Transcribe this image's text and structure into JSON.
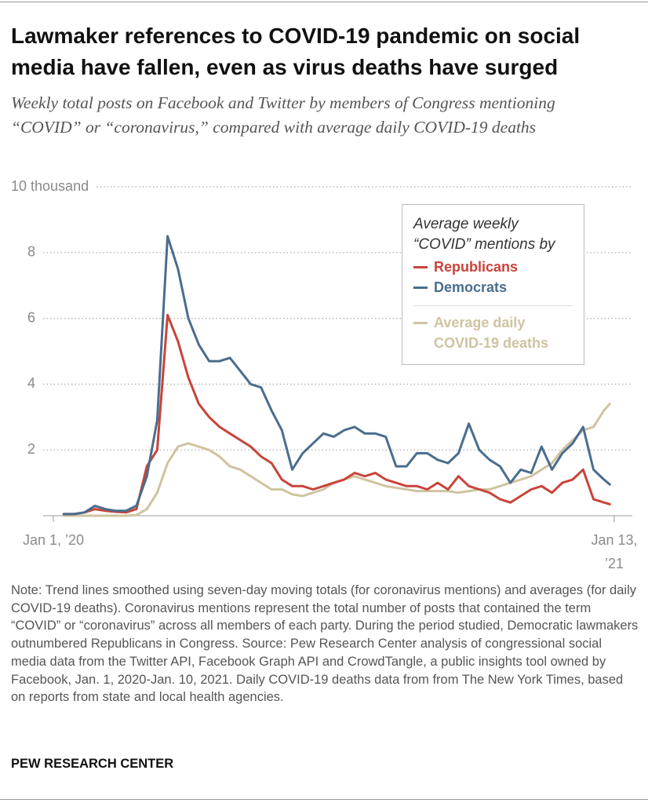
{
  "chart_data": {
    "type": "line",
    "title": "Lawmaker references to COVID-19 pandemic on social media have fallen, even as virus deaths have surged",
    "subtitle": "Weekly total posts on Facebook and Twitter by members of Congress mentioning “COVID” or “coronavirus,” compared with average daily COVID-19 deaths",
    "legend_title": "Average weekly “COVID” mentions by",
    "x": [
      7,
      14,
      21,
      28,
      35,
      42,
      49,
      56,
      63,
      70,
      77,
      84,
      91,
      98,
      105,
      112,
      119,
      126,
      133,
      140,
      147,
      154,
      161,
      168,
      175,
      182,
      189,
      196,
      203,
      210,
      217,
      224,
      231,
      238,
      245,
      252,
      259,
      266,
      273,
      280,
      287,
      294,
      301,
      308,
      315,
      322,
      329,
      336,
      343,
      350,
      357,
      364,
      371,
      375
    ],
    "xlim": [
      0,
      378
    ],
    "xticks": [
      {
        "value": 0,
        "label": "Jan 1, ’20"
      },
      {
        "value": 378,
        "label": "Jan 13, ’21"
      }
    ],
    "ylim": [
      0,
      10
    ],
    "yticks": [
      {
        "value": 10,
        "label": "10 thousand"
      },
      8,
      6,
      4,
      2
    ],
    "grid": true,
    "series": [
      {
        "name": "Republicans",
        "color": "#c9433a",
        "values": [
          0.05,
          0.05,
          0.1,
          0.2,
          0.15,
          0.12,
          0.1,
          0.2,
          1.5,
          2.0,
          6.1,
          5.3,
          4.2,
          3.4,
          3.0,
          2.7,
          2.5,
          2.3,
          2.1,
          1.8,
          1.6,
          1.1,
          0.9,
          0.9,
          0.8,
          0.9,
          1.0,
          1.1,
          1.3,
          1.2,
          1.3,
          1.1,
          1.0,
          0.9,
          0.9,
          0.8,
          1.0,
          0.8,
          1.2,
          0.9,
          0.8,
          0.7,
          0.5,
          0.4,
          0.6,
          0.8,
          0.9,
          0.7,
          1.0,
          1.1,
          1.4,
          0.5,
          0.4,
          0.35
        ]
      },
      {
        "name": "Democrats",
        "color": "#4a6d8e",
        "values": [
          0.05,
          0.05,
          0.1,
          0.3,
          0.2,
          0.15,
          0.15,
          0.3,
          1.2,
          2.9,
          8.5,
          7.5,
          6.0,
          5.2,
          4.7,
          4.7,
          4.8,
          4.4,
          4.0,
          3.9,
          3.2,
          2.6,
          1.4,
          1.9,
          2.2,
          2.5,
          2.4,
          2.6,
          2.7,
          2.5,
          2.5,
          2.4,
          1.5,
          1.5,
          1.9,
          1.9,
          1.7,
          1.6,
          1.9,
          2.8,
          2.0,
          1.7,
          1.5,
          1.0,
          1.4,
          1.3,
          2.1,
          1.4,
          1.9,
          2.2,
          2.7,
          1.4,
          1.1,
          0.95
        ]
      },
      {
        "name": "Average daily COVID-19 deaths",
        "color": "#cfc3a0",
        "values": [
          0,
          0,
          0,
          0,
          0,
          0,
          0,
          0.02,
          0.2,
          0.7,
          1.6,
          2.1,
          2.2,
          2.1,
          2.0,
          1.8,
          1.5,
          1.4,
          1.2,
          1.0,
          0.8,
          0.8,
          0.65,
          0.6,
          0.7,
          0.8,
          1.0,
          1.1,
          1.2,
          1.1,
          1.0,
          0.9,
          0.85,
          0.8,
          0.75,
          0.75,
          0.75,
          0.75,
          0.7,
          0.75,
          0.8,
          0.8,
          0.9,
          1.0,
          1.1,
          1.2,
          1.4,
          1.6,
          2.0,
          2.3,
          2.6,
          2.7,
          3.2,
          3.4
        ]
      }
    ]
  },
  "footer": {
    "note": "Note: Trend lines smoothed using seven-day moving totals (for coronavirus mentions) and averages (for daily COVID-19 deaths). Coronavirus mentions represent the total number of posts that contained the term “COVID” or “coronavirus” across all members of each party. During the period studied, Democratic lawmakers outnumbered Republicans in Congress.",
    "source": "Source: Pew Research Center analysis of congressional social media data from the Twitter API, Facebook Graph API and CrowdTangle, a public insights tool owned by Facebook, Jan. 1, 2020-Jan. 10, 2021. Daily COVID-19 deaths data from from The New York Times, based on reports from state and local health agencies.",
    "credit": "PEW RESEARCH CENTER"
  }
}
